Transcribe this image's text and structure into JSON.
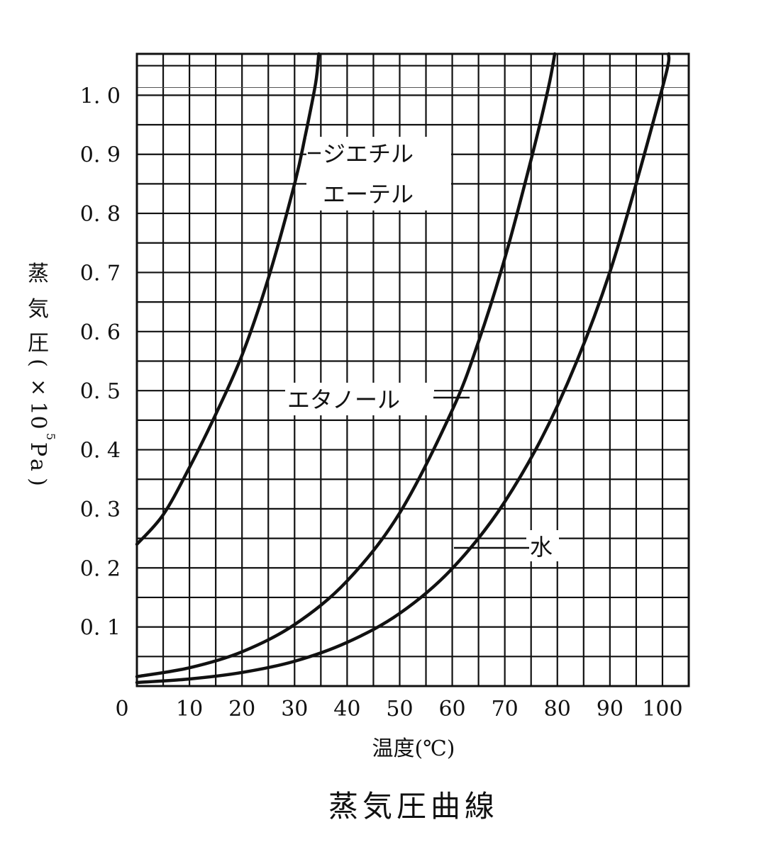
{
  "chart_data": {
    "type": "line",
    "title": "蒸気圧曲線",
    "xlabel": "温度(℃)",
    "ylabel": "蒸気圧(×10⁵Pa)",
    "ylabel_parts": [
      "蒸",
      "気",
      "圧",
      "(",
      "×",
      "1",
      "0",
      "5",
      "P",
      "a",
      ")"
    ],
    "xlim": [
      0,
      105
    ],
    "ylim": [
      0,
      1.07
    ],
    "x_ticks": [
      0,
      10,
      20,
      30,
      40,
      50,
      60,
      70,
      80,
      90,
      100
    ],
    "x_tick_labels": [
      "0",
      "10",
      "20",
      "30",
      "40",
      "50",
      "60",
      "70",
      "80",
      "90",
      "100"
    ],
    "y_ticks": [
      0.1,
      0.2,
      0.3,
      0.4,
      0.5,
      0.6,
      0.7,
      0.8,
      0.9,
      1.0
    ],
    "y_tick_labels": [
      "0. 1",
      "0. 2",
      "0. 3",
      "0. 4",
      "0. 5",
      "0. 6",
      "0. 7",
      "0. 8",
      "0. 9",
      "1. 0"
    ],
    "grid": true,
    "reference_line_y": 1.013,
    "series": [
      {
        "name": "ジエチルエーテル",
        "label_lines": [
          "ジエチル",
          "エーテル"
        ],
        "x": [
          0,
          5,
          10,
          15,
          20,
          25,
          30,
          32,
          34,
          34.6
        ],
        "y": [
          0.24,
          0.29,
          0.37,
          0.46,
          0.56,
          0.69,
          0.85,
          0.93,
          1.02,
          1.07
        ]
      },
      {
        "name": "エタノール",
        "label_lines": [
          "エタノール"
        ],
        "x": [
          0,
          10,
          20,
          30,
          40,
          50,
          60,
          65,
          70,
          75,
          78.3,
          79.5
        ],
        "y": [
          0.016,
          0.031,
          0.058,
          0.104,
          0.178,
          0.293,
          0.467,
          0.583,
          0.724,
          0.891,
          1.013,
          1.07
        ]
      },
      {
        "name": "水",
        "label_lines": [
          "水"
        ],
        "x": [
          0,
          10,
          20,
          30,
          40,
          50,
          60,
          70,
          80,
          90,
          100,
          101.2
        ],
        "y": [
          0.006,
          0.012,
          0.023,
          0.042,
          0.074,
          0.123,
          0.199,
          0.312,
          0.474,
          0.701,
          1.013,
          1.07
        ]
      }
    ]
  }
}
